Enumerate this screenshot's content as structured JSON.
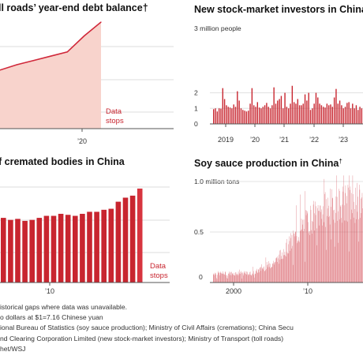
{
  "chart_data": [
    {
      "id": "toll",
      "type": "area",
      "title": "ll roads’ year-end debt balance†",
      "x": [
        2015,
        2016,
        2017,
        2018,
        2019,
        2020,
        2021
      ],
      "values": [
        0.55,
        0.6,
        0.64,
        0.68,
        0.72,
        0.87,
        1.0
      ],
      "xticks": [
        "’20"
      ],
      "annotation": "Data stops",
      "colors": {
        "fill": "#f8d3cc",
        "line": "#d0283a"
      }
    },
    {
      "id": "investors",
      "type": "bar",
      "title": "New stock-market investors in China",
      "unit_label": "3 million people",
      "yticks": [
        "2",
        "1",
        "0"
      ],
      "xticks": [
        "2019",
        "’20",
        "’21",
        "’22",
        "’23"
      ],
      "ylim": [
        0,
        3
      ],
      "values": [
        0.95,
        1.0,
        0.8,
        1.0,
        0.98,
        2.3,
        1.6,
        1.2,
        1.1,
        1.05,
        1.0,
        1.25,
        1.1,
        2.1,
        1.5,
        1.0,
        0.9,
        0.85,
        0.8,
        0.85,
        1.3,
        2.3,
        1.2,
        1.1,
        1.4,
        1.05,
        1.0,
        1.1,
        1.2,
        1.35,
        1.1,
        1.0,
        1.2,
        2.35,
        1.3,
        1.5,
        1.6,
        1.8,
        1.0,
        2.0,
        1.1,
        1.0,
        1.3,
        2.45,
        1.4,
        1.3,
        1.6,
        1.2,
        1.2,
        1.3,
        1.9,
        1.5,
        2.0,
        0.9,
        1.0,
        1.3,
        2.0,
        1.7,
        1.3,
        1.2,
        1.1,
        1.05,
        1.3,
        1.2,
        1.25,
        1.1,
        1.7,
        2.25,
        1.3,
        1.5,
        1.2,
        1.0,
        1.1,
        1.35,
        1.4,
        1.0,
        1.3,
        1.0,
        1.2,
        0.9,
        1.1,
        1.0
      ],
      "colors": {
        "bar": "#c8252f"
      }
    },
    {
      "id": "cremations",
      "type": "bar",
      "title": "f cremated bodies in China",
      "xticks": [
        "’10"
      ],
      "annotation": "Data stops",
      "values": [
        0.64,
        0.62,
        0.63,
        0.61,
        0.62,
        0.64,
        0.66,
        0.66,
        0.68,
        0.67,
        0.66,
        0.68,
        0.7,
        0.7,
        0.72,
        0.73,
        0.8,
        0.84,
        0.86,
        0.93
      ],
      "colors": {
        "bar": "#c8252f",
        "last": "#d7343f"
      }
    },
    {
      "id": "soy",
      "type": "bar",
      "title": "Soy sauce production in China",
      "title_mark": "†",
      "unit_label": "1.0 million tons",
      "yticks": [
        "0.5",
        "0"
      ],
      "xticks": [
        "2000",
        "’10"
      ],
      "ylim": [
        0,
        1
      ],
      "x_start": 1997,
      "x_end": 2023.3,
      "colors": {
        "bar": "#d13f4a",
        "grid": "#e3e3e3"
      }
    }
  ],
  "footer": [
    "istorical gaps where data was unavailable.",
    "o dollars at $1=7.16 Chinese yuan",
    "ional Bureau of Statistics (soy sauce production); Ministry of Civil Affairs (cremations); China Secu",
    "nd Clearing Corporation Limited (new stock-market investors); Ministry of Transport (toll roads)",
    "het/WSJ"
  ]
}
